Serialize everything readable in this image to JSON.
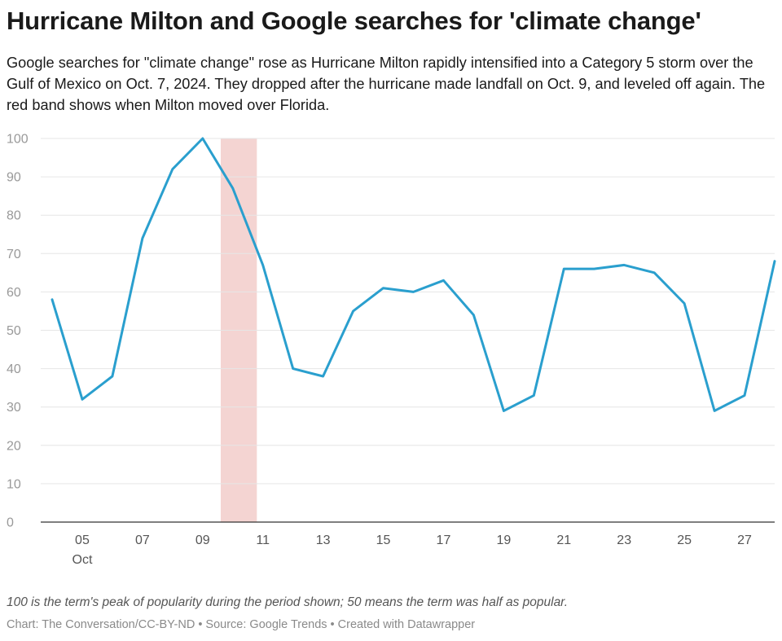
{
  "title": "Hurricane Milton and Google searches for 'climate change'",
  "subtitle": "Google searches for \"climate change\" rose as Hurricane Milton rapidly intensified into a Category 5 storm over the Gulf of Mexico on Oct. 7, 2024. They dropped after the hurricane made landfall on Oct. 9, and leveled off again. The red band shows when Milton moved over Florida.",
  "note": "100 is the term's peak of popularity during the period shown; 50 means the term was half as popular.",
  "footer": "Chart: The Conversation/CC-BY-ND • Source: Google Trends • Created with Datawrapper",
  "colors": {
    "line": "#2a9fce",
    "band": "#f4d4d2",
    "grid": "#e6e6e6",
    "axis": "#333333"
  },
  "chart_data": {
    "type": "line",
    "x_unit": "day of October 2024",
    "x": [
      4,
      5,
      6,
      7,
      8,
      9,
      10,
      11,
      12,
      13,
      14,
      15,
      16,
      17,
      18,
      19,
      20,
      21,
      22,
      23,
      24,
      25,
      26,
      27,
      28
    ],
    "series": [
      {
        "values": [
          58,
          32,
          38,
          74,
          92,
          100,
          87,
          67,
          40,
          38,
          55,
          61,
          60,
          63,
          54,
          29,
          33,
          66,
          66,
          67,
          65,
          57,
          29,
          33,
          68
        ]
      }
    ],
    "xticks": [
      {
        "day": 5,
        "label": "05",
        "sublabel": "Oct"
      },
      {
        "day": 7,
        "label": "07"
      },
      {
        "day": 9,
        "label": "09"
      },
      {
        "day": 11,
        "label": "11"
      },
      {
        "day": 13,
        "label": "13"
      },
      {
        "day": 15,
        "label": "15"
      },
      {
        "day": 17,
        "label": "17"
      },
      {
        "day": 19,
        "label": "19"
      },
      {
        "day": 21,
        "label": "21"
      },
      {
        "day": 23,
        "label": "23"
      },
      {
        "day": 25,
        "label": "25"
      },
      {
        "day": 27,
        "label": "27"
      }
    ],
    "yticks": [
      0,
      10,
      20,
      30,
      40,
      50,
      60,
      70,
      80,
      90,
      100
    ],
    "ylim": [
      0,
      100
    ],
    "xlim": [
      4,
      28
    ],
    "highlight_band": {
      "from": 9.6,
      "to": 10.8
    },
    "grid": true
  }
}
